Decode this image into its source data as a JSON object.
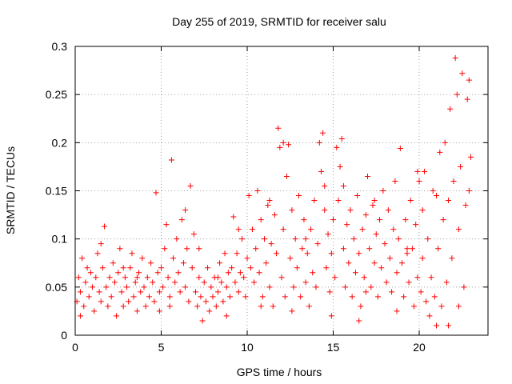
{
  "chart_data": {
    "type": "scatter",
    "title": "Day 255 of 2019, SRMTID for receiver salu",
    "xlabel": "GPS time / hours",
    "ylabel": "SRMTID / TECUs",
    "xlim": [
      0,
      24
    ],
    "ylim": [
      0,
      0.3
    ],
    "x_ticks": [
      "0",
      "5",
      "10",
      "15",
      "20"
    ],
    "y_ticks": [
      "0",
      "0.05",
      "0.1",
      "0.15",
      "0.2",
      "0.25",
      "0.3"
    ],
    "grid": true,
    "marker": "plus",
    "color": "#ff0000",
    "series": [
      {
        "points": [
          [
            0.1,
            0.035
          ],
          [
            0.2,
            0.06
          ],
          [
            0.3,
            0.045
          ],
          [
            0.4,
            0.08
          ],
          [
            0.5,
            0.03
          ],
          [
            0.6,
            0.055
          ],
          [
            0.7,
            0.07
          ],
          [
            0.8,
            0.04
          ],
          [
            0.9,
            0.065
          ],
          [
            1.0,
            0.05
          ],
          [
            1.1,
            0.025
          ],
          [
            1.2,
            0.06
          ],
          [
            1.3,
            0.085
          ],
          [
            1.4,
            0.045
          ],
          [
            1.5,
            0.035
          ],
          [
            1.6,
            0.07
          ],
          [
            1.7,
            0.113
          ],
          [
            1.8,
            0.05
          ],
          [
            1.9,
            0.03
          ],
          [
            2.0,
            0.06
          ],
          [
            2.1,
            0.04
          ],
          [
            2.2,
            0.075
          ],
          [
            2.3,
            0.055
          ],
          [
            2.4,
            0.02
          ],
          [
            2.5,
            0.065
          ],
          [
            2.6,
            0.09
          ],
          [
            2.7,
            0.045
          ],
          [
            2.8,
            0.03
          ],
          [
            2.9,
            0.06
          ],
          [
            3.0,
            0.05
          ],
          [
            3.1,
            0.035
          ],
          [
            3.2,
            0.07
          ],
          [
            3.3,
            0.085
          ],
          [
            3.4,
            0.04
          ],
          [
            3.5,
            0.055
          ],
          [
            3.6,
            0.025
          ],
          [
            3.7,
            0.065
          ],
          [
            3.8,
            0.045
          ],
          [
            3.9,
            0.08
          ],
          [
            4.0,
            0.05
          ],
          [
            4.1,
            0.03
          ],
          [
            4.2,
            0.06
          ],
          [
            4.3,
            0.04
          ],
          [
            4.4,
            0.075
          ],
          [
            4.5,
            0.055
          ],
          [
            4.6,
            0.035
          ],
          [
            4.7,
            0.148
          ],
          [
            4.8,
            0.065
          ],
          [
            4.9,
            0.045
          ],
          [
            5.0,
            0.07
          ],
          [
            5.1,
            0.05
          ],
          [
            5.2,
            0.09
          ],
          [
            5.3,
            0.115
          ],
          [
            5.4,
            0.06
          ],
          [
            5.5,
            0.04
          ],
          [
            5.6,
            0.182
          ],
          [
            5.7,
            0.08
          ],
          [
            5.8,
            0.055
          ],
          [
            5.9,
            0.1
          ],
          [
            6.0,
            0.065
          ],
          [
            6.1,
            0.045
          ],
          [
            6.2,
            0.12
          ],
          [
            6.3,
            0.075
          ],
          [
            6.4,
            0.05
          ],
          [
            6.5,
            0.09
          ],
          [
            6.6,
            0.035
          ],
          [
            6.7,
            0.155
          ],
          [
            6.8,
            0.07
          ],
          [
            6.9,
            0.105
          ],
          [
            7.0,
            0.045
          ],
          [
            7.1,
            0.03
          ],
          [
            7.2,
            0.06
          ],
          [
            7.3,
            0.04
          ],
          [
            7.4,
            0.015
          ],
          [
            7.5,
            0.055
          ],
          [
            7.6,
            0.035
          ],
          [
            7.7,
            0.07
          ],
          [
            7.8,
            0.025
          ],
          [
            7.9,
            0.05
          ],
          [
            8.0,
            0.04
          ],
          [
            8.1,
            0.06
          ],
          [
            8.2,
            0.03
          ],
          [
            8.3,
            0.045
          ],
          [
            8.4,
            0.075
          ],
          [
            8.5,
            0.055
          ],
          [
            8.6,
            0.035
          ],
          [
            8.7,
            0.085
          ],
          [
            8.8,
            0.05
          ],
          [
            8.9,
            0.065
          ],
          [
            9.0,
            0.04
          ],
          [
            9.1,
            0.07
          ],
          [
            9.2,
            0.123
          ],
          [
            9.3,
            0.055
          ],
          [
            9.4,
            0.085
          ],
          [
            9.5,
            0.045
          ],
          [
            9.6,
            0.065
          ],
          [
            9.7,
            0.1
          ],
          [
            9.8,
            0.06
          ],
          [
            9.9,
            0.04
          ],
          [
            10.0,
            0.08
          ],
          [
            10.1,
            0.145
          ],
          [
            10.2,
            0.07
          ],
          [
            10.3,
            0.11
          ],
          [
            10.4,
            0.055
          ],
          [
            10.5,
            0.09
          ],
          [
            10.6,
            0.15
          ],
          [
            10.7,
            0.065
          ],
          [
            10.8,
            0.12
          ],
          [
            10.9,
            0.04
          ],
          [
            11.0,
            0.1
          ],
          [
            11.1,
            0.075
          ],
          [
            11.2,
            0.135
          ],
          [
            11.3,
            0.05
          ],
          [
            11.4,
            0.095
          ],
          [
            11.5,
            0.03
          ],
          [
            11.6,
            0.125
          ],
          [
            11.7,
            0.085
          ],
          [
            11.8,
            0.215
          ],
          [
            11.9,
            0.195
          ],
          [
            12.0,
            0.06
          ],
          [
            12.1,
            0.11
          ],
          [
            12.2,
            0.04
          ],
          [
            12.3,
            0.165
          ],
          [
            12.4,
            0.198
          ],
          [
            12.5,
            0.08
          ],
          [
            12.6,
            0.13
          ],
          [
            12.7,
            0.05
          ],
          [
            12.8,
            0.1
          ],
          [
            12.9,
            0.07
          ],
          [
            13.0,
            0.145
          ],
          [
            13.1,
            0.04
          ],
          [
            13.2,
            0.09
          ],
          [
            13.3,
            0.12
          ],
          [
            13.4,
            0.055
          ],
          [
            13.5,
            0.085
          ],
          [
            13.6,
            0.03
          ],
          [
            13.7,
            0.11
          ],
          [
            13.8,
            0.065
          ],
          [
            13.9,
            0.14
          ],
          [
            14.0,
            0.05
          ],
          [
            14.1,
            0.095
          ],
          [
            14.2,
            0.2
          ],
          [
            14.3,
            0.17
          ],
          [
            14.4,
            0.21
          ],
          [
            14.5,
            0.13
          ],
          [
            14.6,
            0.07
          ],
          [
            14.7,
            0.105
          ],
          [
            14.8,
            0.045
          ],
          [
            14.9,
            0.085
          ],
          [
            15.0,
            0.12
          ],
          [
            15.1,
            0.06
          ],
          [
            15.2,
            0.195
          ],
          [
            15.3,
            0.14
          ],
          [
            15.4,
            0.175
          ],
          [
            15.5,
            0.204
          ],
          [
            15.6,
            0.09
          ],
          [
            15.7,
            0.05
          ],
          [
            15.8,
            0.115
          ],
          [
            15.9,
            0.075
          ],
          [
            16.0,
            0.13
          ],
          [
            16.1,
            0.04
          ],
          [
            16.2,
            0.1
          ],
          [
            16.3,
            0.065
          ],
          [
            16.4,
            0.145
          ],
          [
            16.5,
            0.085
          ],
          [
            16.6,
            0.03
          ],
          [
            16.7,
            0.11
          ],
          [
            16.8,
            0.06
          ],
          [
            16.9,
            0.125
          ],
          [
            17.0,
            0.165
          ],
          [
            17.1,
            0.09
          ],
          [
            17.2,
            0.05
          ],
          [
            17.3,
            0.135
          ],
          [
            17.4,
            0.075
          ],
          [
            17.5,
            0.105
          ],
          [
            17.6,
            0.04
          ],
          [
            17.7,
            0.12
          ],
          [
            17.8,
            0.07
          ],
          [
            17.9,
            0.15
          ],
          [
            18.0,
            0.095
          ],
          [
            18.1,
            0.055
          ],
          [
            18.2,
            0.13
          ],
          [
            18.3,
            0.08
          ],
          [
            18.4,
            0.045
          ],
          [
            18.5,
            0.11
          ],
          [
            18.6,
            0.16
          ],
          [
            18.7,
            0.065
          ],
          [
            18.8,
            0.1
          ],
          [
            18.9,
            0.194
          ],
          [
            19.0,
            0.075
          ],
          [
            19.1,
            0.04
          ],
          [
            19.2,
            0.12
          ],
          [
            19.3,
            0.085
          ],
          [
            19.4,
            0.055
          ],
          [
            19.5,
            0.14
          ],
          [
            19.6,
            0.09
          ],
          [
            19.7,
            0.03
          ],
          [
            19.8,
            0.115
          ],
          [
            19.9,
            0.06
          ],
          [
            20.0,
            0.16
          ],
          [
            20.1,
            0.045
          ],
          [
            20.2,
            0.08
          ],
          [
            20.3,
            0.17
          ],
          [
            20.4,
            0.035
          ],
          [
            20.5,
            0.1
          ],
          [
            20.6,
            0.02
          ],
          [
            20.7,
            0.06
          ],
          [
            20.8,
            0.15
          ],
          [
            20.9,
            0.04
          ],
          [
            21.0,
            0.01
          ],
          [
            21.1,
            0.09
          ],
          [
            21.2,
            0.19
          ],
          [
            21.3,
            0.03
          ],
          [
            21.4,
            0.12
          ],
          [
            21.5,
            0.2
          ],
          [
            21.6,
            0.055
          ],
          [
            21.7,
            0.14
          ],
          [
            21.8,
            0.235
          ],
          [
            21.9,
            0.08
          ],
          [
            22.0,
            0.16
          ],
          [
            22.1,
            0.288
          ],
          [
            22.2,
            0.25
          ],
          [
            22.3,
            0.11
          ],
          [
            22.4,
            0.175
          ],
          [
            22.5,
            0.272
          ],
          [
            22.6,
            0.05
          ],
          [
            22.7,
            0.135
          ],
          [
            22.8,
            0.245
          ],
          [
            22.9,
            0.265
          ],
          [
            23.0,
            0.185
          ],
          [
            0.3,
            0.02
          ],
          [
            1.5,
            0.095
          ],
          [
            2.8,
            0.07
          ],
          [
            3.6,
            0.06
          ],
          [
            4.9,
            0.025
          ],
          [
            6.4,
            0.13
          ],
          [
            7.2,
            0.09
          ],
          [
            8.8,
            0.02
          ],
          [
            9.5,
            0.11
          ],
          [
            10.8,
            0.03
          ],
          [
            11.3,
            0.14
          ],
          [
            12.6,
            0.025
          ],
          [
            13.4,
            0.1
          ],
          [
            14.9,
            0.02
          ],
          [
            15.6,
            0.155
          ],
          [
            16.5,
            0.015
          ],
          [
            17.4,
            0.14
          ],
          [
            18.7,
            0.025
          ],
          [
            19.3,
            0.09
          ],
          [
            20.2,
            0.13
          ],
          [
            21.0,
            0.145
          ],
          [
            21.7,
            0.01
          ],
          [
            22.3,
            0.03
          ],
          [
            22.9,
            0.15
          ],
          [
            5.5,
            0.03
          ],
          [
            8.3,
            0.06
          ],
          [
            12.1,
            0.2
          ],
          [
            14.5,
            0.155
          ],
          [
            16.9,
            0.045
          ],
          [
            19.9,
            0.17
          ]
        ]
      }
    ]
  }
}
